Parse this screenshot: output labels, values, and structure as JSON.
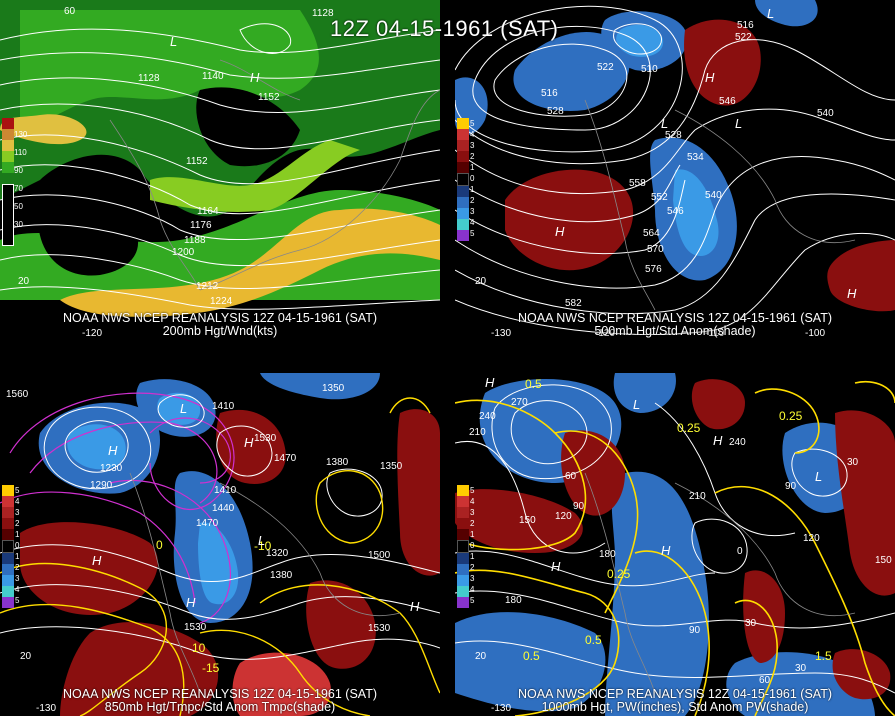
{
  "title": "12Z 04-15-1961 (SAT)",
  "panels": [
    {
      "id": "p200",
      "caption1": "NOAA NWS NCEP REANALYSIS 12Z 04-15-1961 (SAT)",
      "caption2": "200mb Hgt/Wnd(kts)",
      "colorbar_labels": [
        "130",
        "110",
        "90",
        "70",
        "50",
        "30"
      ],
      "contour_labels": [
        "1128",
        "1128",
        "1140",
        "1152",
        "1152",
        "1164",
        "1176",
        "1188",
        "1200",
        "1212",
        "1224"
      ],
      "highs_lows": [
        "L",
        "H"
      ],
      "lat_lon_labels": [
        "20",
        "-120",
        "60"
      ]
    },
    {
      "id": "p500",
      "caption1": "NOAA NWS NCEP REANALYSIS 12Z 04-15-1961 (SAT)",
      "caption2": "500mb Hgt/Std Anom(shade)",
      "colorbar_labels": [
        "5",
        "4",
        "3",
        "2",
        "1",
        "0",
        "1",
        "2",
        "3",
        "4",
        "5"
      ],
      "contour_labels": [
        "516",
        "522",
        "528",
        "510",
        "516",
        "522",
        "546",
        "528",
        "534",
        "540",
        "540",
        "552",
        "558",
        "546",
        "564",
        "570",
        "576",
        "582"
      ],
      "highs_lows": [
        "L",
        "H",
        "L",
        "L",
        "H",
        "H"
      ],
      "lat_lon_labels": [
        "20",
        "-130",
        "-120",
        "-110",
        "-100"
      ]
    },
    {
      "id": "p850",
      "caption1": "NOAA NWS NCEP REANALYSIS 12Z 04-15-1961 (SAT)",
      "caption2": "850mb Hgt/Tmpc/Std Anom Tmpc(shade)",
      "colorbar_labels": [
        "5",
        "4",
        "3",
        "2",
        "1",
        "0",
        "1",
        "2",
        "3",
        "4",
        "5"
      ],
      "contour_labels": [
        "1560",
        "1350",
        "1410",
        "1530",
        "1470",
        "1380",
        "1350",
        "1440",
        "1410",
        "1470",
        "1320",
        "1380",
        "1500",
        "1530",
        "1530",
        "1290",
        "1230"
      ],
      "temp_labels": [
        "0",
        "10",
        "-15",
        "-10"
      ],
      "highs_lows": [
        "H",
        "H",
        "L",
        "H",
        "L",
        "H",
        "H"
      ],
      "lat_lon_labels": [
        "20",
        "-130"
      ]
    },
    {
      "id": "p1000",
      "caption1": "NOAA NWS NCEP REANALYSIS 12Z 04-15-1961 (SAT)",
      "caption2": "1000mb Hgt, PW(inches), Std Anom PW(shade)",
      "colorbar_labels": [
        "5",
        "4",
        "3",
        "2",
        "1",
        "0",
        "1",
        "2",
        "3",
        "4",
        "5"
      ],
      "contour_labels": [
        "270",
        "240",
        "210",
        "150",
        "120",
        "90",
        "60",
        "180",
        "210",
        "240",
        "90",
        "30",
        "150",
        "120",
        "30",
        "0",
        "90",
        "30",
        "60",
        "180"
      ],
      "pw_labels": [
        "0.5",
        "0.25",
        "0.25",
        "0.25",
        "0.5",
        "0.5",
        "1.5"
      ],
      "highs_lows": [
        "H",
        "L",
        "H",
        "H",
        "H",
        "L"
      ],
      "lat_lon_labels": [
        "20",
        "-130"
      ]
    }
  ]
}
